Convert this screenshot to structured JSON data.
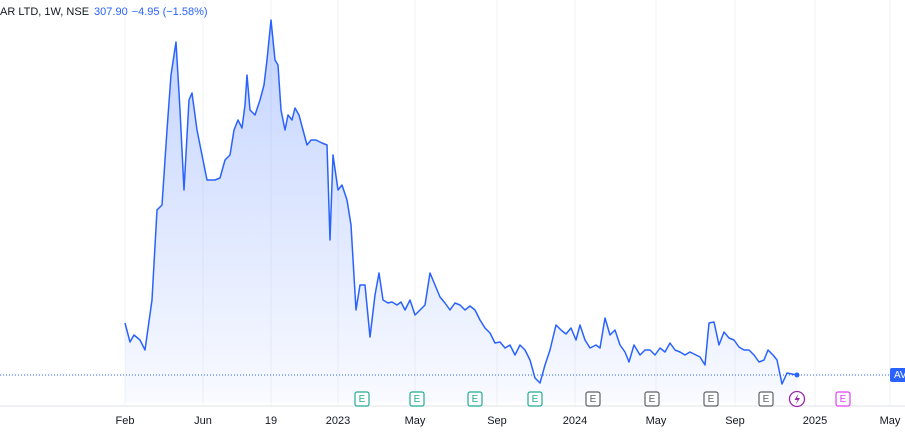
{
  "chart_data": {
    "type": "area",
    "header": {
      "symbol": "AR LTD, 1W, NSE",
      "price": "307.90",
      "change": "−4.95 (−1.58%)"
    },
    "price_tag": "AV",
    "color": "#2962ff",
    "grid": true,
    "xlim": [
      -125,
      780
    ],
    "ylim": [
      200,
      1800
    ],
    "xticks": [
      {
        "value": 0,
        "label": "Feb"
      },
      {
        "value": 78,
        "label": "Jun"
      },
      {
        "value": 146,
        "label": "19"
      },
      {
        "value": 213,
        "label": "2023"
      },
      {
        "value": 290,
        "label": "May"
      },
      {
        "value": 372,
        "label": "Sep"
      },
      {
        "value": 450,
        "label": "2024"
      },
      {
        "value": 531,
        "label": "May"
      },
      {
        "value": 610,
        "label": "Sep"
      },
      {
        "value": 690,
        "label": "2025"
      },
      {
        "value": 765,
        "label": "May"
      }
    ],
    "events": [
      {
        "x": 237,
        "label": "E",
        "color": "#22ab94"
      },
      {
        "x": 292,
        "label": "E",
        "color": "#22ab94"
      },
      {
        "x": 350,
        "label": "E",
        "color": "#22ab94"
      },
      {
        "x": 410,
        "label": "E",
        "color": "#22ab94"
      },
      {
        "x": 468,
        "label": "E",
        "color": "#5d606b"
      },
      {
        "x": 527,
        "label": "E",
        "color": "#5d606b"
      },
      {
        "x": 586,
        "label": "E",
        "color": "#5d606b"
      },
      {
        "x": 641,
        "label": "E",
        "color": "#5d606b"
      },
      {
        "x": 718,
        "label": "E",
        "color": "#e040fb"
      }
    ],
    "x": [
      0,
      5,
      9,
      15,
      20,
      27,
      32,
      37,
      42,
      46,
      51,
      55,
      59,
      64,
      67,
      72,
      78,
      82,
      90,
      95,
      100,
      105,
      109,
      113,
      117,
      120,
      122,
      125,
      130,
      135,
      139,
      142,
      146,
      150,
      153,
      156,
      160,
      163,
      167,
      170,
      174,
      178,
      182,
      186,
      191,
      197,
      202,
      205,
      208,
      213,
      217,
      222,
      226,
      231,
      235,
      240,
      245,
      250,
      254,
      258,
      263,
      267,
      272,
      276,
      280,
      285,
      290,
      295,
      300,
      305,
      310,
      315,
      320,
      325,
      330,
      335,
      340,
      345,
      350,
      355,
      360,
      365,
      370,
      375,
      380,
      385,
      390,
      395,
      400,
      405,
      410,
      415,
      420,
      425,
      431,
      436,
      441,
      446,
      451,
      455,
      460,
      465,
      471,
      475,
      480,
      485,
      490,
      495,
      500,
      504,
      509,
      515,
      520,
      525,
      530,
      535,
      540,
      545,
      550,
      555,
      560,
      565,
      571,
      575,
      580,
      584,
      589,
      594,
      599,
      604,
      609,
      614,
      619,
      624,
      629,
      634,
      639,
      643,
      648,
      652,
      657,
      662,
      667,
      672
    ],
    "values": [
      516,
      440,
      468,
      448,
      408,
      608,
      968,
      988,
      1288,
      1508,
      1640,
      1368,
      1048,
      1408,
      1436,
      1288,
      1168,
      1088,
      1088,
      1096,
      1168,
      1188,
      1288,
      1328,
      1296,
      1388,
      1508,
      1368,
      1348,
      1408,
      1468,
      1568,
      1728,
      1568,
      1548,
      1368,
      1288,
      1348,
      1328,
      1376,
      1348,
      1288,
      1228,
      1248,
      1248,
      1236,
      1228,
      848,
      1188,
      1048,
      1068,
      1008,
      908,
      568,
      668,
      668,
      460,
      628,
      716,
      608,
      596,
      600,
      588,
      600,
      568,
      608,
      548,
      568,
      588,
      716,
      668,
      620,
      596,
      568,
      596,
      588,
      568,
      584,
      568,
      528,
      496,
      476,
      436,
      440,
      416,
      428,
      388,
      428,
      408,
      368,
      296,
      276,
      348,
      408,
      508,
      488,
      472,
      496,
      448,
      508,
      448,
      416,
      428,
      416,
      536,
      468,
      488,
      428,
      400,
      360,
      428,
      388,
      408,
      408,
      388,
      416,
      400,
      436,
      408,
      400,
      388,
      400,
      388,
      380,
      348,
      516,
      520,
      428,
      480,
      456,
      448,
      420,
      408,
      408,
      388,
      360,
      368,
      408,
      388,
      368,
      272,
      316,
      312,
      307.9
    ]
  }
}
